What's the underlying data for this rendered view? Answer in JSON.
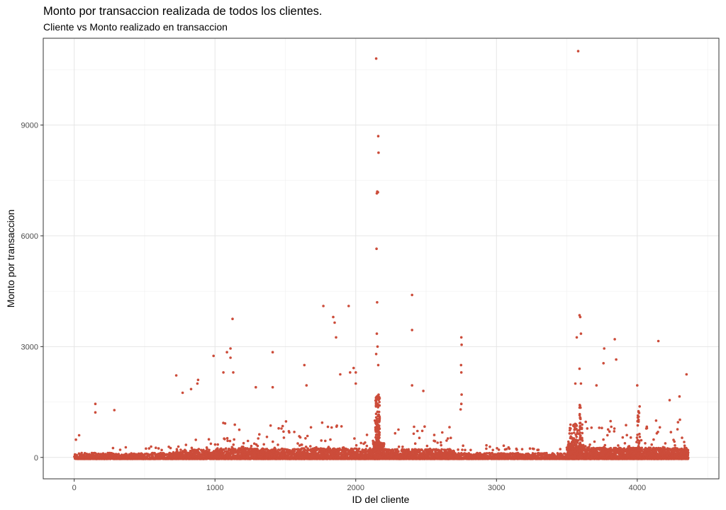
{
  "chart_data": {
    "type": "scatter",
    "title": "Monto por transaccion realizada de todos los clientes.",
    "subtitle": "Cliente vs Monto realizado en transaccion",
    "xlabel": "ID del cliente",
    "ylabel": "Monto por transaccion",
    "xlim": [
      -220,
      4580
    ],
    "ylim": [
      -580,
      11350
    ],
    "x_ticks": [
      0,
      1000,
      2000,
      3000,
      4000
    ],
    "x_tick_labels": [
      "0",
      "1000",
      "2000",
      "3000",
      "4000"
    ],
    "y_ticks": [
      0,
      3000,
      6000,
      9000
    ],
    "y_tick_labels": [
      "0",
      "3000",
      "6000",
      "9000"
    ],
    "grid": true,
    "point_color": "#cc4c3a",
    "outliers": [
      [
        12,
        480
      ],
      [
        35,
        600
      ],
      [
        150,
        1450
      ],
      [
        150,
        1220
      ],
      [
        285,
        1280
      ],
      [
        725,
        2220
      ],
      [
        770,
        1750
      ],
      [
        830,
        1850
      ],
      [
        875,
        2000
      ],
      [
        880,
        2100
      ],
      [
        990,
        2750
      ],
      [
        1060,
        2300
      ],
      [
        1085,
        2850
      ],
      [
        1110,
        2950
      ],
      [
        1110,
        2700
      ],
      [
        1125,
        3750
      ],
      [
        1130,
        2300
      ],
      [
        1290,
        1900
      ],
      [
        1410,
        2850
      ],
      [
        1410,
        1900
      ],
      [
        1635,
        2500
      ],
      [
        1650,
        1950
      ],
      [
        1770,
        4100
      ],
      [
        1840,
        3800
      ],
      [
        1850,
        3650
      ],
      [
        1860,
        3250
      ],
      [
        1890,
        2250
      ],
      [
        1950,
        4100
      ],
      [
        1960,
        2300
      ],
      [
        1985,
        2420
      ],
      [
        2000,
        2300
      ],
      [
        2000,
        2000
      ],
      [
        2145,
        10800
      ],
      [
        2160,
        8700
      ],
      [
        2162,
        8250
      ],
      [
        2150,
        7150
      ],
      [
        2153,
        7200
      ],
      [
        2158,
        7180
      ],
      [
        2148,
        5650
      ],
      [
        2152,
        4200
      ],
      [
        2150,
        3350
      ],
      [
        2155,
        3000
      ],
      [
        2145,
        2800
      ],
      [
        2160,
        2500
      ],
      [
        2400,
        4400
      ],
      [
        2400,
        3450
      ],
      [
        2400,
        1950
      ],
      [
        2480,
        1800
      ],
      [
        2750,
        3250
      ],
      [
        2752,
        3050
      ],
      [
        2748,
        2500
      ],
      [
        2750,
        2300
      ],
      [
        2752,
        1700
      ],
      [
        2750,
        1450
      ],
      [
        2745,
        1300
      ],
      [
        3580,
        11000
      ],
      [
        3590,
        3850
      ],
      [
        3595,
        3800
      ],
      [
        3600,
        3350
      ],
      [
        3570,
        3250
      ],
      [
        3590,
        2400
      ],
      [
        3560,
        2000
      ],
      [
        3600,
        2000
      ],
      [
        3765,
        2950
      ],
      [
        3760,
        2550
      ],
      [
        3840,
        3200
      ],
      [
        3850,
        2650
      ],
      [
        4000,
        1950
      ],
      [
        4150,
        3150
      ],
      [
        4350,
        2250
      ],
      [
        4230,
        1550
      ],
      [
        4300,
        1650
      ],
      [
        3710,
        1950
      ]
    ]
  }
}
